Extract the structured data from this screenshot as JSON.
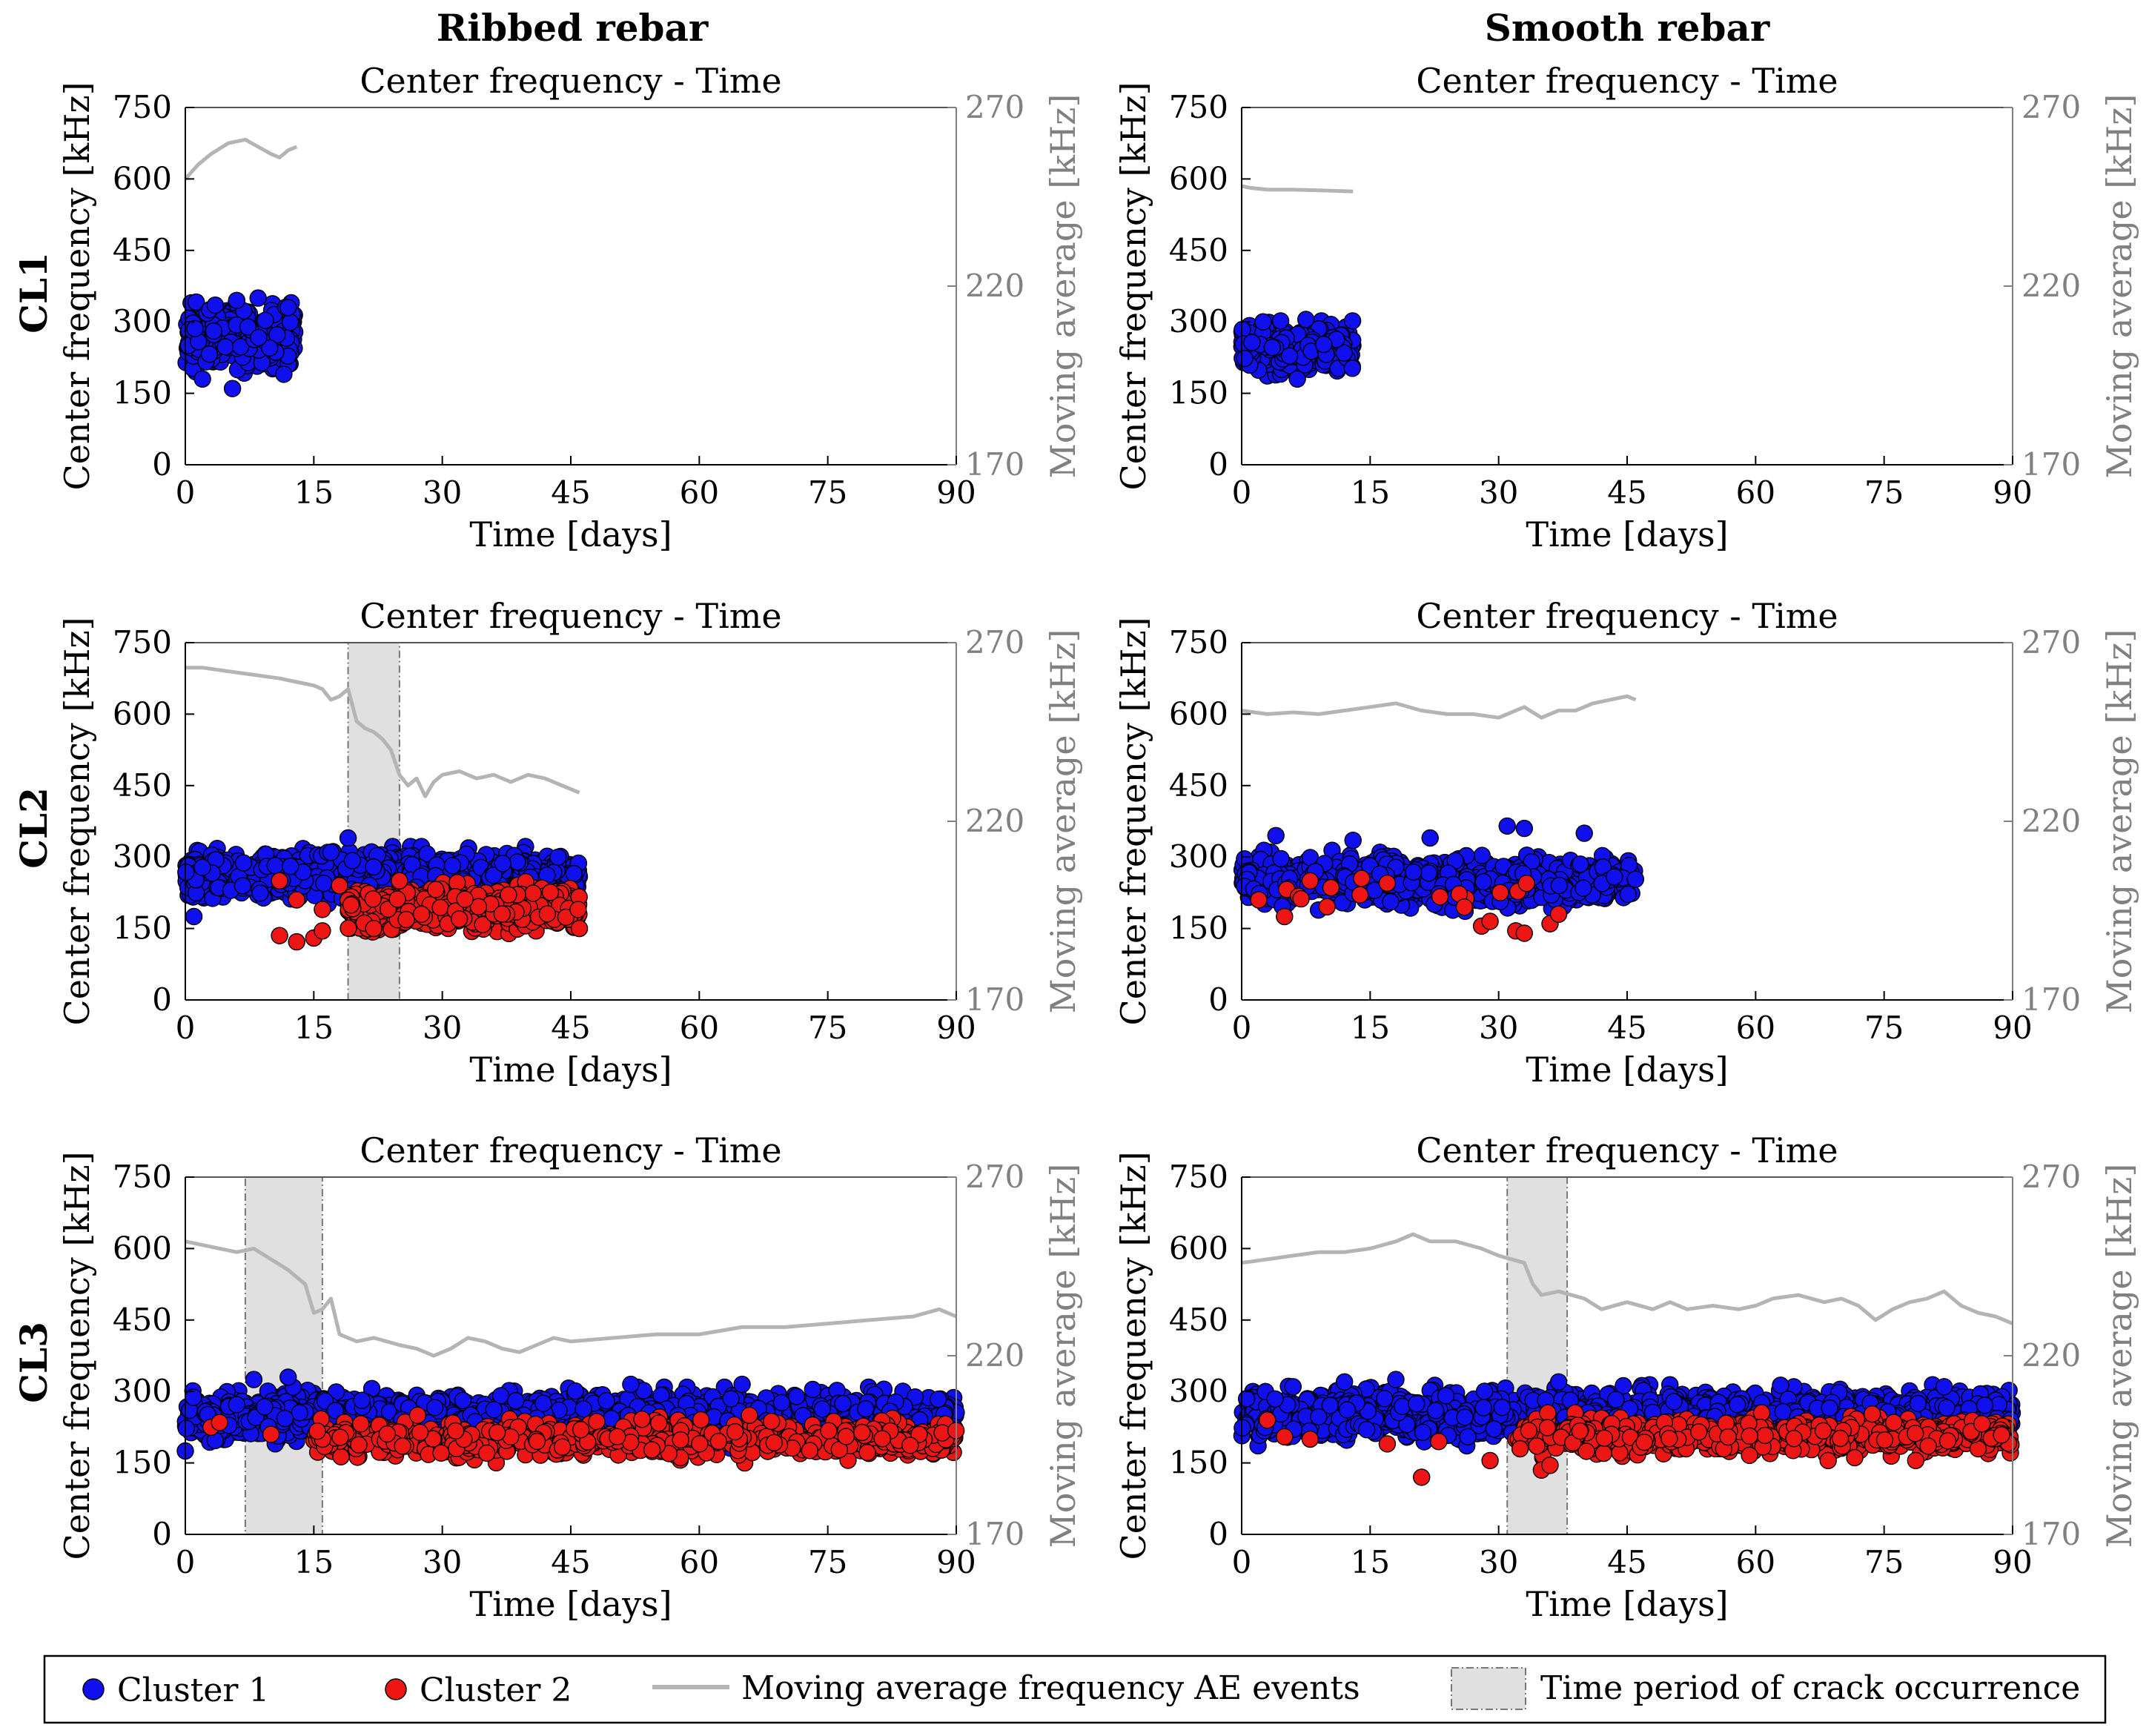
{
  "figure": {
    "column_titles": [
      "Ribbed rebar",
      "Smooth rebar"
    ],
    "row_labels": [
      "CL1",
      "CL2",
      "CL3"
    ],
    "legend": {
      "cluster1": "Cluster 1",
      "cluster2": "Cluster 2",
      "moving_average": "Moving average frequency AE events",
      "crack_period": "Time period of crack occurrence"
    },
    "colors": {
      "cluster1": "#1010ee",
      "cluster2": "#ee1515",
      "moving_average": "#b4b4b4",
      "crack_band": "#e0e0e0",
      "right_axis": "#808080"
    }
  },
  "chart_data": [
    {
      "id": "ribbed-cl1",
      "type": "scatter",
      "title": "Center frequency - Time",
      "xlabel": "Time [days]",
      "ylabel": "Center frequency [kHz]",
      "y2label": "Moving average [kHz]",
      "xlim": [
        0,
        90
      ],
      "ylim": [
        0,
        750
      ],
      "y2lim": [
        170,
        270
      ],
      "xticks": [
        0,
        15,
        30,
        45,
        60,
        75,
        90
      ],
      "yticks": [
        0,
        150,
        300,
        450,
        600,
        750
      ],
      "y2ticks": [
        170,
        220,
        270
      ],
      "clusters": [
        {
          "name": "Cluster 1",
          "x_range": [
            0,
            12.8
          ],
          "center": 265,
          "spread": 40,
          "count": 420,
          "outliers": [
            [
              5.5,
              160
            ],
            [
              2.0,
              180
            ],
            [
              11.5,
              190
            ],
            [
              6.0,
              345
            ],
            [
              8.5,
              350
            ],
            [
              3.5,
              335
            ],
            [
              12.0,
              330
            ]
          ]
        }
      ],
      "moving_average": [
        [
          0,
          250
        ],
        [
          1.5,
          254
        ],
        [
          3,
          257
        ],
        [
          5,
          260
        ],
        [
          7,
          261
        ],
        [
          8.5,
          259
        ],
        [
          10,
          257
        ],
        [
          11,
          256
        ],
        [
          12,
          258
        ],
        [
          13,
          259
        ]
      ],
      "crack_period": null
    },
    {
      "id": "smooth-cl1",
      "type": "scatter",
      "title": "Center frequency - Time",
      "xlabel": "Time [days]",
      "ylabel": "Center frequency [kHz]",
      "y2label": "Moving average [kHz]",
      "xlim": [
        0,
        90
      ],
      "ylim": [
        0,
        750
      ],
      "y2lim": [
        170,
        270
      ],
      "xticks": [
        0,
        15,
        30,
        45,
        60,
        75,
        90
      ],
      "yticks": [
        0,
        150,
        300,
        450,
        600,
        750
      ],
      "y2ticks": [
        170,
        220,
        270
      ],
      "clusters": [
        {
          "name": "Cluster 1",
          "x_range": [
            0,
            13
          ],
          "center": 242,
          "spread": 30,
          "count": 320,
          "outliers": [
            [
              6.5,
              180
            ],
            [
              2.5,
              300
            ],
            [
              7.5,
              305
            ]
          ]
        }
      ],
      "moving_average": [
        [
          0,
          248
        ],
        [
          1,
          247.5
        ],
        [
          3,
          247
        ],
        [
          6,
          247
        ],
        [
          9,
          246.8
        ],
        [
          13,
          246.5
        ]
      ],
      "crack_period": null
    },
    {
      "id": "ribbed-cl2",
      "type": "scatter",
      "title": "Center frequency - Time",
      "xlabel": "Time [days]",
      "ylabel": "Center frequency [kHz]",
      "y2label": "Moving average [kHz]",
      "xlim": [
        0,
        90
      ],
      "ylim": [
        0,
        750
      ],
      "y2lim": [
        170,
        270
      ],
      "xticks": [
        0,
        15,
        30,
        45,
        60,
        75,
        90
      ],
      "yticks": [
        0,
        150,
        300,
        450,
        600,
        750
      ],
      "y2ticks": [
        170,
        220,
        270
      ],
      "clusters": [
        {
          "name": "Cluster 1",
          "x_range": [
            0,
            46
          ],
          "center": 262,
          "spread": 30,
          "count": 1150,
          "outliers": [
            [
              1,
              175
            ],
            [
              19,
              340
            ],
            [
              17,
              310
            ]
          ]
        },
        {
          "name": "Cluster 2",
          "x_range": [
            19,
            46
          ],
          "center": 192,
          "spread": 28,
          "count": 620,
          "outliers": [
            [
              11,
              135
            ],
            [
              13,
              122
            ],
            [
              15,
              130
            ],
            [
              16,
              145
            ],
            [
              11,
              250
            ],
            [
              13,
              210
            ],
            [
              16,
              190
            ],
            [
              18,
              240
            ],
            [
              25,
              250
            ],
            [
              22,
              150
            ],
            [
              46,
              150
            ]
          ]
        }
      ],
      "moving_average": [
        [
          0,
          263
        ],
        [
          2,
          263
        ],
        [
          5,
          262
        ],
        [
          8,
          261
        ],
        [
          11,
          260
        ],
        [
          13,
          259
        ],
        [
          15,
          258
        ],
        [
          16,
          257
        ],
        [
          17,
          254
        ],
        [
          18,
          255
        ],
        [
          19,
          257
        ],
        [
          20,
          248
        ],
        [
          21,
          246
        ],
        [
          22,
          245
        ],
        [
          23,
          243
        ],
        [
          24,
          240
        ],
        [
          25,
          233
        ],
        [
          26,
          230
        ],
        [
          27,
          232
        ],
        [
          28,
          227
        ],
        [
          29,
          231
        ],
        [
          30,
          233
        ],
        [
          32,
          234
        ],
        [
          34,
          232
        ],
        [
          36,
          233
        ],
        [
          38,
          231
        ],
        [
          40,
          233
        ],
        [
          42,
          232
        ],
        [
          44,
          230
        ],
        [
          46,
          228
        ]
      ],
      "crack_period": [
        19,
        25
      ]
    },
    {
      "id": "smooth-cl2",
      "type": "scatter",
      "title": "Center frequency - Time",
      "xlabel": "Time [days]",
      "ylabel": "Center frequency [kHz]",
      "y2label": "Moving average [kHz]",
      "xlim": [
        0,
        90
      ],
      "ylim": [
        0,
        750
      ],
      "y2lim": [
        170,
        270
      ],
      "xticks": [
        0,
        15,
        30,
        45,
        60,
        75,
        90
      ],
      "yticks": [
        0,
        150,
        300,
        450,
        600,
        750
      ],
      "y2ticks": [
        170,
        220,
        270
      ],
      "clusters": [
        {
          "name": "Cluster 1",
          "x_range": [
            0,
            46
          ],
          "center": 250,
          "spread": 32,
          "count": 950,
          "outliers": [
            [
              4,
              345
            ],
            [
              31,
              365
            ],
            [
              33,
              360
            ],
            [
              40,
              350
            ],
            [
              13,
              335
            ],
            [
              22,
              340
            ]
          ]
        },
        {
          "name": "Cluster 2",
          "x_range": [
            0,
            46
          ],
          "center": 225,
          "spread": 25,
          "count": 12,
          "outliers": [
            [
              5,
              175
            ],
            [
              28,
              155
            ],
            [
              29,
              165
            ],
            [
              32,
              145
            ],
            [
              33,
              140
            ],
            [
              36,
              160
            ],
            [
              37,
              180
            ],
            [
              14,
              255
            ],
            [
              8,
              250
            ],
            [
              26,
              195
            ],
            [
              2,
              210
            ],
            [
              17,
              245
            ]
          ]
        }
      ],
      "moving_average": [
        [
          0,
          251
        ],
        [
          3,
          250
        ],
        [
          6,
          250.5
        ],
        [
          9,
          250
        ],
        [
          12,
          251
        ],
        [
          15,
          252
        ],
        [
          18,
          253
        ],
        [
          21,
          251
        ],
        [
          24,
          250
        ],
        [
          27,
          250
        ],
        [
          30,
          249
        ],
        [
          32,
          251
        ],
        [
          33,
          252
        ],
        [
          35,
          249
        ],
        [
          37,
          251
        ],
        [
          39,
          251
        ],
        [
          41,
          253
        ],
        [
          43,
          254
        ],
        [
          45,
          255
        ],
        [
          46,
          254
        ]
      ],
      "crack_period": null
    },
    {
      "id": "ribbed-cl3",
      "type": "scatter",
      "title": "Center frequency - Time",
      "xlabel": "Time [days]",
      "ylabel": "Center frequency [kHz]",
      "y2label": "Moving average [kHz]",
      "xlim": [
        0,
        90
      ],
      "ylim": [
        0,
        750
      ],
      "y2lim": [
        170,
        270
      ],
      "xticks": [
        0,
        15,
        30,
        45,
        60,
        75,
        90
      ],
      "yticks": [
        0,
        150,
        300,
        450,
        600,
        750
      ],
      "y2ticks": [
        170,
        220,
        270
      ],
      "clusters": [
        {
          "name": "Cluster 1",
          "x_range": [
            0,
            90
          ],
          "center": 245,
          "spread": 32,
          "count": 1900,
          "outliers": [
            [
              52,
              315
            ],
            [
              65,
              315
            ],
            [
              12,
              330
            ],
            [
              8,
              325
            ],
            [
              0,
              175
            ]
          ]
        },
        {
          "name": "Cluster 2",
          "x_range": [
            15,
            90
          ],
          "center": 200,
          "spread": 25,
          "count": 650,
          "outliers": [
            [
              3,
              225
            ],
            [
              10,
              210
            ],
            [
              4,
              235
            ]
          ]
        }
      ],
      "moving_average": [
        [
          0,
          252
        ],
        [
          2,
          251
        ],
        [
          4,
          250
        ],
        [
          6,
          249
        ],
        [
          8,
          250
        ],
        [
          10,
          247
        ],
        [
          12,
          244
        ],
        [
          14,
          240
        ],
        [
          15,
          232
        ],
        [
          16,
          233
        ],
        [
          17,
          236
        ],
        [
          18,
          226
        ],
        [
          20,
          224
        ],
        [
          22,
          225
        ],
        [
          25,
          223
        ],
        [
          27,
          222
        ],
        [
          29,
          220
        ],
        [
          31,
          222
        ],
        [
          33,
          225
        ],
        [
          35,
          224
        ],
        [
          37,
          222
        ],
        [
          39,
          221
        ],
        [
          41,
          223
        ],
        [
          43,
          225
        ],
        [
          45,
          224
        ],
        [
          50,
          225
        ],
        [
          55,
          226
        ],
        [
          60,
          226
        ],
        [
          65,
          228
        ],
        [
          70,
          228
        ],
        [
          75,
          229
        ],
        [
          80,
          230
        ],
        [
          85,
          231
        ],
        [
          88,
          233
        ],
        [
          90,
          231
        ]
      ],
      "crack_period": [
        7,
        16
      ]
    },
    {
      "id": "smooth-cl3",
      "type": "scatter",
      "title": "Center frequency - Time",
      "xlabel": "Time [days]",
      "ylabel": "Center frequency [kHz]",
      "y2label": "Moving average [kHz]",
      "xlim": [
        0,
        90
      ],
      "ylim": [
        0,
        750
      ],
      "y2lim": [
        170,
        270
      ],
      "xticks": [
        0,
        15,
        30,
        45,
        60,
        75,
        90
      ],
      "yticks": [
        0,
        150,
        300,
        450,
        600,
        750
      ],
      "y2ticks": [
        170,
        220,
        270
      ],
      "clusters": [
        {
          "name": "Cluster 1",
          "x_range": [
            0,
            90
          ],
          "center": 250,
          "spread": 32,
          "count": 1900,
          "outliers": [
            [
              12,
              320
            ],
            [
              18,
              325
            ],
            [
              37,
              320
            ],
            [
              82,
              310
            ],
            [
              6,
              310
            ]
          ]
        },
        {
          "name": "Cluster 2",
          "x_range": [
            32,
            90
          ],
          "center": 205,
          "spread": 25,
          "count": 650,
          "outliers": [
            [
              21,
              120
            ],
            [
              29,
              155
            ],
            [
              35,
              135
            ],
            [
              36,
              145
            ],
            [
              5,
              205
            ],
            [
              8,
              200
            ],
            [
              17,
              190
            ],
            [
              23,
              195
            ],
            [
              3,
              240
            ]
          ]
        }
      ],
      "moving_average": [
        [
          0,
          246
        ],
        [
          3,
          247
        ],
        [
          6,
          248
        ],
        [
          9,
          249
        ],
        [
          12,
          249
        ],
        [
          15,
          250
        ],
        [
          18,
          252
        ],
        [
          20,
          254
        ],
        [
          22,
          252
        ],
        [
          25,
          252
        ],
        [
          28,
          250
        ],
        [
          30,
          248
        ],
        [
          33,
          246
        ],
        [
          34,
          240
        ],
        [
          35,
          237
        ],
        [
          37,
          238
        ],
        [
          40,
          236
        ],
        [
          42,
          233
        ],
        [
          45,
          235
        ],
        [
          48,
          233
        ],
        [
          50,
          235
        ],
        [
          52,
          233
        ],
        [
          55,
          234
        ],
        [
          58,
          233
        ],
        [
          60,
          234
        ],
        [
          62,
          236
        ],
        [
          65,
          237
        ],
        [
          68,
          235
        ],
        [
          70,
          236
        ],
        [
          72,
          234
        ],
        [
          74,
          230
        ],
        [
          76,
          233
        ],
        [
          78,
          235
        ],
        [
          80,
          236
        ],
        [
          82,
          238
        ],
        [
          84,
          234
        ],
        [
          86,
          232
        ],
        [
          88,
          231
        ],
        [
          90,
          229
        ]
      ],
      "crack_period": [
        31,
        38
      ]
    }
  ]
}
